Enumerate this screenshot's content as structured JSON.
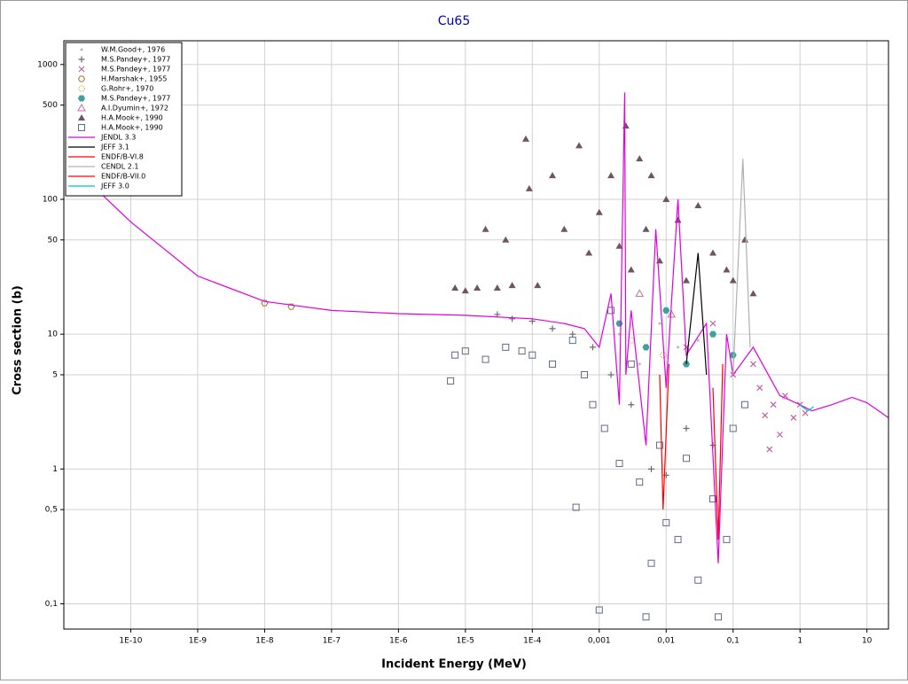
{
  "chart_data": {
    "type": "line",
    "title": "Cu65",
    "x_label": "Incident Energy (MeV)",
    "y_label": "Cross section (b)",
    "xscale": "log",
    "yscale": "log",
    "grid": true,
    "legend": "upper left",
    "xlim": [
      1e-11,
      21
    ],
    "ylim": [
      0.065,
      1500
    ],
    "xticks": [
      {
        "value": 1e-10,
        "label": "1E-10"
      },
      {
        "value": 1e-09,
        "label": "1E-9"
      },
      {
        "value": 1e-08,
        "label": "1E-8"
      },
      {
        "value": 1e-07,
        "label": "1E-7"
      },
      {
        "value": 1e-06,
        "label": "1E-6"
      },
      {
        "value": 1e-05,
        "label": "1E-5"
      },
      {
        "value": 0.0001,
        "label": "1E-4"
      },
      {
        "value": 0.001,
        "label": "0,001"
      },
      {
        "value": 0.01,
        "label": "0,01"
      },
      {
        "value": 0.1,
        "label": "0,1"
      },
      1,
      10
    ],
    "yticks": [
      {
        "value": 0.1,
        "label": "0,1"
      },
      {
        "value": 0.5,
        "label": "0,5"
      },
      1,
      5,
      10,
      50,
      100,
      500,
      1000
    ],
    "series": [
      {
        "name": "W.M.Good+, 1976",
        "mode": "markers",
        "marker": "dot",
        "color": "#b8b8b8",
        "x": [
          0.002,
          0.004,
          0.008,
          0.015,
          0.03
        ],
        "values": [
          10,
          6,
          12,
          8,
          9
        ]
      },
      {
        "name": "M.S.Pandey+, 1977",
        "mode": "markers",
        "marker": "plus",
        "color": "#6a6a6a",
        "x": [
          3e-05,
          5e-05,
          0.0001,
          0.0002,
          0.0004,
          0.0008,
          0.0015,
          0.003,
          0.006,
          0.01,
          0.02,
          0.05
        ],
        "values": [
          14,
          13,
          12.5,
          11,
          10,
          8,
          5,
          3,
          1,
          0.9,
          2,
          1.5
        ]
      },
      {
        "name": "M.S.Pandey+, 1977",
        "mode": "markers",
        "marker": "cross",
        "color": "#c060a0",
        "x": [
          0.2,
          0.25,
          0.3,
          0.4,
          0.5,
          0.6,
          0.8,
          1,
          1.2,
          0.35,
          0.02,
          0.05,
          0.1
        ],
        "values": [
          6,
          4,
          2.5,
          3,
          1.8,
          3.5,
          2.4,
          3,
          2.6,
          1.4,
          8,
          12,
          5
        ]
      },
      {
        "name": "H.Marshak+, 1955",
        "mode": "markers",
        "marker": "hex",
        "color": "#b07030",
        "x": [
          1e-08,
          2.5e-08
        ],
        "values": [
          17,
          16
        ]
      },
      {
        "name": "G.Rohr+, 1970",
        "mode": "markers",
        "marker": "hexdot",
        "color": "#d0a030",
        "x": [
          0.003,
          0.009
        ],
        "values": [
          9,
          7
        ]
      },
      {
        "name": "M.S.Pandey+, 1977",
        "mode": "markers",
        "marker": "hexfill",
        "color": "#40a0a0",
        "x": [
          0.002,
          0.005,
          0.01,
          0.02,
          0.05,
          0.1
        ],
        "values": [
          12,
          8,
          15,
          6,
          10,
          7
        ]
      },
      {
        "name": "A.I.Dyumin+, 1972",
        "mode": "markers",
        "marker": "tri",
        "color": "#c070a0",
        "x": [
          0.004,
          0.012
        ],
        "values": [
          20,
          14
        ]
      },
      {
        "name": "H.A.Mook+, 1990",
        "mode": "markers",
        "marker": "trifill",
        "color": "#6e5560",
        "x": [
          7e-06,
          1e-05,
          1.5e-05,
          2e-05,
          3e-05,
          4e-05,
          5e-05,
          8e-05,
          9e-05,
          0.00012,
          0.0002,
          0.0003,
          0.0005,
          0.0007,
          0.001,
          0.0015,
          0.002,
          0.0025,
          0.003,
          0.004,
          0.005,
          0.006,
          0.008,
          0.01,
          0.015,
          0.02,
          0.03,
          0.05,
          0.08,
          0.1,
          0.15,
          0.2
        ],
        "values": [
          22,
          21,
          22,
          60,
          22,
          50,
          23,
          280,
          120,
          23,
          150,
          60,
          250,
          40,
          80,
          150,
          45,
          350,
          30,
          200,
          60,
          150,
          35,
          100,
          70,
          25,
          90,
          40,
          30,
          25,
          50,
          20
        ]
      },
      {
        "name": "H.A.Mook+, 1990",
        "mode": "markers",
        "marker": "square",
        "color": "#5f6b85",
        "x": [
          6e-06,
          7e-06,
          1e-05,
          2e-05,
          4e-05,
          7e-05,
          0.0001,
          0.0002,
          0.0004,
          0.00045,
          0.0006,
          0.0008,
          0.001,
          0.0012,
          0.0015,
          0.002,
          0.003,
          0.004,
          0.005,
          0.006,
          0.008,
          0.01,
          0.015,
          0.02,
          0.03,
          0.05,
          0.06,
          0.08,
          0.1,
          0.15
        ],
        "values": [
          4.5,
          7,
          7.5,
          6.5,
          8,
          7.5,
          7,
          6,
          9,
          0.52,
          5,
          3,
          0.09,
          2,
          15,
          1.1,
          6,
          0.8,
          0.08,
          0.2,
          1.5,
          0.4,
          0.3,
          1.2,
          0.15,
          0.6,
          0.08,
          0.3,
          2,
          3
        ]
      },
      {
        "name": "JENDL 3.3",
        "mode": "line",
        "color": "#e000e0",
        "x": [
          3e-11,
          1e-10,
          1e-09,
          1e-08,
          1e-07,
          1e-06,
          1e-05,
          0.0001,
          0.0003,
          0.0006,
          0.001,
          0.0015,
          0.002,
          0.0024,
          0.0025,
          0.003,
          0.005,
          0.007,
          0.01,
          0.015,
          0.02,
          0.04,
          0.06,
          0.08,
          0.1,
          0.2,
          0.5,
          1,
          1.5,
          3,
          6,
          10,
          21
        ],
        "values": [
          120,
          68,
          27,
          17.5,
          15,
          14.2,
          13.8,
          13,
          12,
          11,
          8,
          20,
          3,
          620,
          5,
          15,
          1.5,
          60,
          4,
          100,
          7,
          12,
          0.2,
          10,
          5,
          8,
          3.5,
          3,
          2.7,
          3,
          3.4,
          3.1,
          2.4
        ]
      },
      {
        "name": "JEFF 3.1",
        "mode": "line",
        "color": "#000000",
        "x": [
          0.02,
          0.03,
          0.04
        ],
        "values": [
          6,
          40,
          5
        ]
      },
      {
        "name": "ENDF/B-VI.8",
        "mode": "line",
        "color": "#ff0000",
        "x": [
          0.05,
          0.06,
          0.07
        ],
        "values": [
          4,
          0.3,
          6
        ]
      },
      {
        "name": "CENDL 2.1",
        "mode": "line",
        "color": "#b0b0b0",
        "x": [
          0.1,
          0.14,
          0.18
        ],
        "values": [
          5,
          200,
          8
        ]
      },
      {
        "name": "ENDF/B-VII.0",
        "mode": "line",
        "color": "#ff0000",
        "x": [
          0.008,
          0.009,
          0.011
        ],
        "values": [
          5,
          0.5,
          6
        ]
      },
      {
        "name": "JEFF 3.0",
        "mode": "line",
        "color": "#00c0c0",
        "x": [
          1,
          1.3,
          1.6
        ],
        "values": [
          3,
          2.7,
          2.9
        ]
      }
    ]
  }
}
